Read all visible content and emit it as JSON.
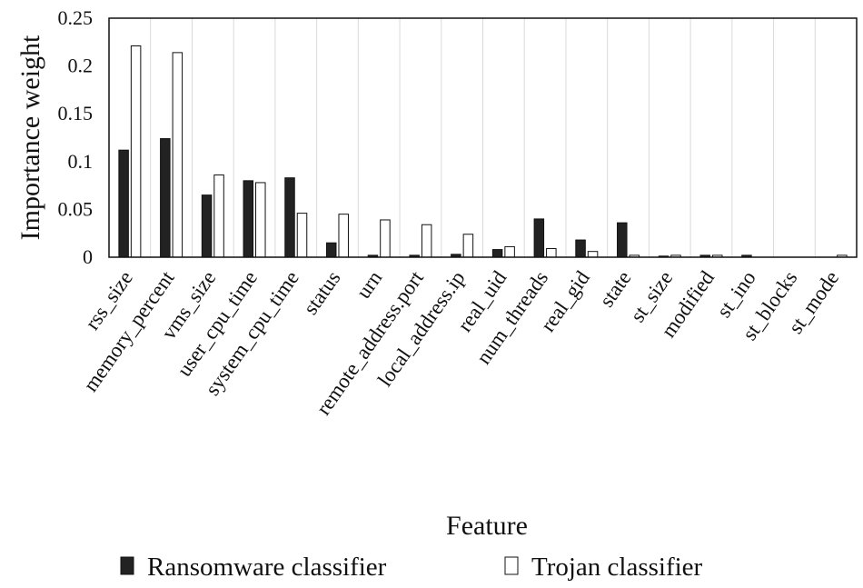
{
  "chart_data": {
    "type": "bar",
    "xlabel": "Feature",
    "ylabel": "Importance weight",
    "ylim": [
      0,
      0.25
    ],
    "yticks": [
      "0",
      "0.05",
      "0.1",
      "0.15",
      "0.2",
      "0.25"
    ],
    "grid": "vertical",
    "legend_position": "bottom",
    "categories": [
      "rss_size",
      "memory_percent",
      "vms_size",
      "user_cpu_time",
      "system_cpu_time",
      "status",
      "urn",
      "remote_address.port",
      "local_address.ip",
      "real_uid",
      "num_threads",
      "real_gid",
      "state",
      "st_size",
      "modified",
      "st_ino",
      "st_blocks",
      "st_mode"
    ],
    "series": [
      {
        "name": "Ransomware classifier",
        "color": "#222222",
        "values": [
          0.112,
          0.124,
          0.065,
          0.08,
          0.083,
          0.015,
          0.002,
          0.002,
          0.003,
          0.008,
          0.04,
          0.018,
          0.036,
          0.0005,
          0.002,
          0.002,
          0.0,
          0.0
        ]
      },
      {
        "name": "Trojan classifier",
        "color": "#ffffff",
        "values": [
          0.221,
          0.214,
          0.086,
          0.078,
          0.046,
          0.045,
          0.039,
          0.034,
          0.024,
          0.011,
          0.009,
          0.006,
          0.002,
          0.002,
          0.002,
          0.0,
          0.0,
          0.002
        ]
      }
    ]
  }
}
